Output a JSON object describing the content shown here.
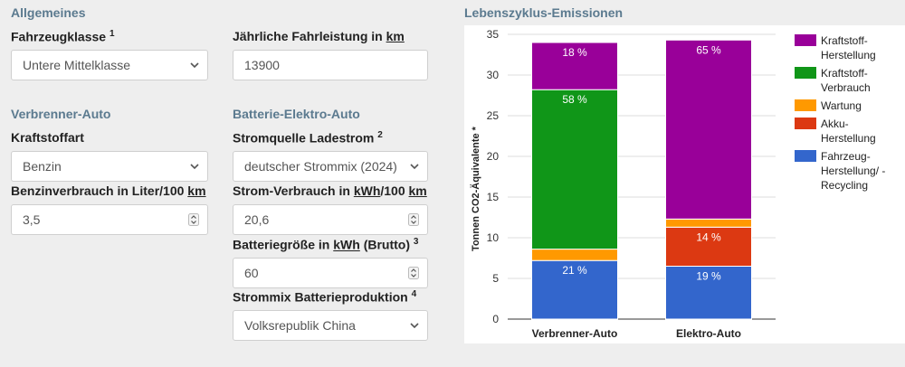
{
  "sections": {
    "general": "Allgemeines",
    "combustion": "Verbrenner-Auto",
    "electric": "Batterie-Elektro-Auto",
    "chart": "Lebenszyklus-Emissionen"
  },
  "fields": {
    "vehicle_class": {
      "label": "Fahrzeugklasse",
      "sup": "1",
      "value": "Untere Mittelklasse"
    },
    "mileage": {
      "label_pre": "Jährliche Fahrleistung in ",
      "label_unit": "km",
      "value": "13900"
    },
    "fuel_type": {
      "label": "Kraftstoffart",
      "value": "Benzin"
    },
    "fuel_consumption": {
      "label_pre": "Benzinverbrauch in Liter/100 ",
      "label_unit": "km",
      "value": "3,5"
    },
    "power_source": {
      "label": "Stromquelle Ladestrom",
      "sup": "2",
      "value": "deutscher Strommix (2024)"
    },
    "power_consumption": {
      "label_pre": "Strom-Verbrauch in ",
      "label_unit1": "kWh",
      "label_mid": "/100 ",
      "label_unit2": "km",
      "value": "20,6"
    },
    "battery_size": {
      "label_pre": "Batteriegröße in ",
      "label_unit": "kWh",
      "label_post": " (Brutto)",
      "sup": "3",
      "value": "60"
    },
    "battery_mix": {
      "label": "Strommix Batterieproduktion",
      "sup": "4",
      "value": "Volksrepublik China"
    }
  },
  "colors": {
    "fuel_production": "#990099",
    "fuel_consumption": "#109618",
    "maintenance": "#ff9900",
    "battery_production": "#dc3912",
    "vehicle_production": "#3366cc"
  },
  "chart_data": {
    "type": "bar",
    "stacked": true,
    "categories": [
      "Verbrenner-Auto",
      "Elektro-Auto"
    ],
    "ylabel": "Tonnen CO2-Äquivalente *",
    "ylim": [
      0,
      35
    ],
    "yticks": [
      0,
      5,
      10,
      15,
      20,
      25,
      30,
      35
    ],
    "grid": true,
    "legend_position": "right",
    "series": [
      {
        "name": "Fahrzeug-Herstellung/ -Recycling",
        "legend_lines": [
          "Fahrzeug-",
          "Herstellung/ -",
          "Recycling"
        ],
        "color_key": "vehicle_production",
        "values": [
          7.2,
          6.5
        ],
        "labels": [
          "21 %",
          "19 %"
        ]
      },
      {
        "name": "Akku-Herstellung",
        "legend_lines": [
          "Akku-",
          "Herstellung"
        ],
        "color_key": "battery_production",
        "values": [
          0,
          4.8
        ],
        "labels": [
          "",
          "14 %"
        ]
      },
      {
        "name": "Wartung",
        "legend_lines": [
          "Wartung"
        ],
        "color_key": "maintenance",
        "values": [
          1.4,
          1.0
        ],
        "labels": [
          "",
          ""
        ]
      },
      {
        "name": "Kraftstoff-Verbrauch",
        "legend_lines": [
          "Kraftstoff-",
          "Verbrauch"
        ],
        "color_key": "fuel_consumption",
        "values": [
          19.6,
          0
        ],
        "labels": [
          "58 %",
          ""
        ]
      },
      {
        "name": "Kraftstoff-Herstellung",
        "legend_lines": [
          "Kraftstoff-",
          "Herstellung"
        ],
        "color_key": "fuel_production",
        "values": [
          5.8,
          22.0
        ],
        "labels": [
          "18 %",
          "65 %"
        ]
      }
    ],
    "legend_order": [
      "Kraftstoff-Herstellung",
      "Kraftstoff-Verbrauch",
      "Wartung",
      "Akku-Herstellung",
      "Fahrzeug-Herstellung/ -Recycling"
    ]
  }
}
